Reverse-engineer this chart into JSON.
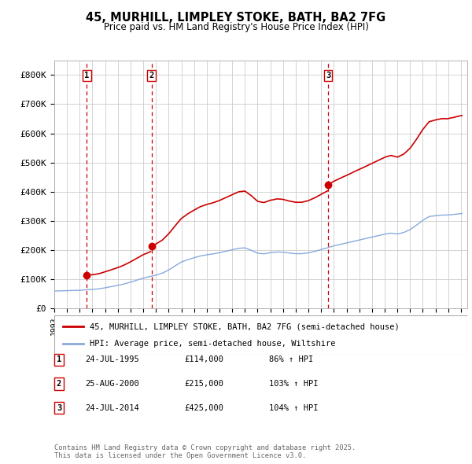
{
  "title": "45, MURHILL, LIMPLEY STOKE, BATH, BA2 7FG",
  "subtitle": "Price paid vs. HM Land Registry's House Price Index (HPI)",
  "ylim": [
    0,
    850000
  ],
  "yticks": [
    0,
    100000,
    200000,
    300000,
    400000,
    500000,
    600000,
    700000,
    800000
  ],
  "ytick_labels": [
    "£0",
    "£100K",
    "£200K",
    "£300K",
    "£400K",
    "£500K",
    "£600K",
    "£700K",
    "£800K"
  ],
  "xlim_start": 1993,
  "xlim_end": 2025.5,
  "sale_dates": [
    1995.56,
    2000.65,
    2014.56
  ],
  "sale_prices": [
    114000,
    215000,
    425000
  ],
  "sale_labels": [
    "1",
    "2",
    "3"
  ],
  "sale_annotations": [
    {
      "label": "1",
      "date": "24-JUL-1995",
      "price": "£114,000",
      "hpi_pct": "86% ↑ HPI"
    },
    {
      "label": "2",
      "date": "25-AUG-2000",
      "price": "£215,000",
      "hpi_pct": "103% ↑ HPI"
    },
    {
      "label": "3",
      "date": "24-JUL-2014",
      "price": "£425,000",
      "hpi_pct": "104% ↑ HPI"
    }
  ],
  "property_line_color": "#cc0000",
  "hpi_line_color": "#88aadd",
  "vline_color": "#cc0000",
  "dot_color": "#cc0000",
  "legend_property_label": "45, MURHILL, LIMPLEY STOKE, BATH, BA2 7FG (semi-detached house)",
  "legend_hpi_label": "HPI: Average price, semi-detached house, Wiltshire",
  "footer_text": "Contains HM Land Registry data © Crown copyright and database right 2025.\nThis data is licensed under the Open Government Licence v3.0.",
  "background_color": "#ffffff",
  "plot_bg_color": "#ffffff",
  "grid_color": "#cccccc"
}
